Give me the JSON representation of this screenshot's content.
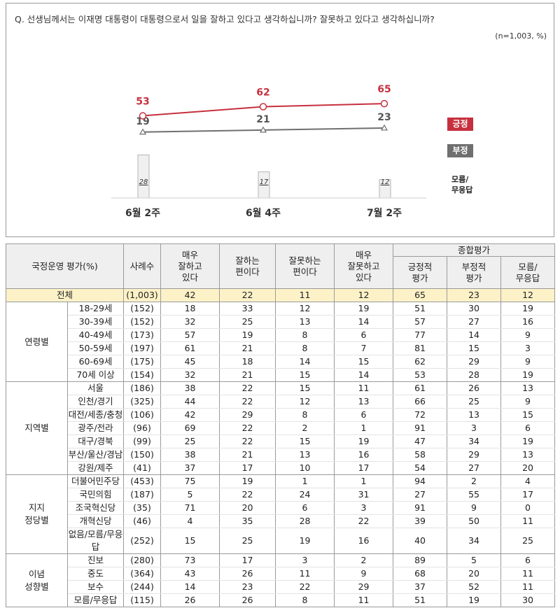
{
  "question": "Q. 선생님께서는 이재명 대통령이 대통령으로서 일을 잘하고 있다고 생각하십니까? 잘못하고 있다고 생각하십니까?",
  "sample_note": "(n=1,003,  %)",
  "legend": {
    "positive": "긍정",
    "negative": "부정",
    "dont_know": "모름/\n무응답"
  },
  "colors": {
    "positive": "#c6303e",
    "negative": "#6f6f6f",
    "bar_fill": "#f0f0f0",
    "total_row": "#fdf2c7"
  },
  "chart_data": {
    "type": "line",
    "categories": [
      "6월 2주",
      "6월 4주",
      "7월 2주"
    ],
    "series": [
      {
        "name": "긍정",
        "values": [
          53,
          62,
          65
        ]
      },
      {
        "name": "부정",
        "values": [
          19,
          21,
          23
        ]
      },
      {
        "name": "모름/무응답",
        "values": [
          28,
          17,
          12
        ]
      }
    ],
    "ylim": [
      0,
      100
    ]
  },
  "table": {
    "header": {
      "label": "국정운영 평가(%)",
      "sample": "사례수",
      "c1": "매우\n잘하고\n있다",
      "c2": "잘하는\n편이다",
      "c3": "잘못하는\n편이다",
      "c4": "매우\n잘못하고\n있다",
      "summary": "종합평가",
      "s1": "긍정적\n평가",
      "s2": "부정적\n평가",
      "s3": "모름/\n무응답"
    },
    "total": {
      "label": "전체",
      "n": "(1,003)",
      "v": [
        "42",
        "22",
        "11",
        "12",
        "65",
        "23",
        "12"
      ]
    },
    "groups": [
      {
        "name": "연령별",
        "rows": [
          {
            "label": "18-29세",
            "n": "(152)",
            "v": [
              "18",
              "33",
              "12",
              "19",
              "51",
              "30",
              "19"
            ]
          },
          {
            "label": "30-39세",
            "n": "(152)",
            "v": [
              "32",
              "25",
              "13",
              "14",
              "57",
              "27",
              "16"
            ]
          },
          {
            "label": "40-49세",
            "n": "(173)",
            "v": [
              "57",
              "19",
              "8",
              "6",
              "77",
              "14",
              "9"
            ]
          },
          {
            "label": "50-59세",
            "n": "(197)",
            "v": [
              "61",
              "21",
              "8",
              "7",
              "81",
              "15",
              "3"
            ]
          },
          {
            "label": "60-69세",
            "n": "(175)",
            "v": [
              "45",
              "18",
              "14",
              "15",
              "62",
              "29",
              "9"
            ]
          },
          {
            "label": "70세 이상",
            "n": "(154)",
            "v": [
              "32",
              "21",
              "15",
              "14",
              "53",
              "28",
              "19"
            ]
          }
        ]
      },
      {
        "name": "지역별",
        "rows": [
          {
            "label": "서울",
            "n": "(186)",
            "v": [
              "38",
              "22",
              "15",
              "11",
              "61",
              "26",
              "13"
            ]
          },
          {
            "label": "인천/경기",
            "n": "(325)",
            "v": [
              "44",
              "22",
              "12",
              "13",
              "66",
              "25",
              "9"
            ]
          },
          {
            "label": "대전/세종/충청",
            "n": "(106)",
            "v": [
              "42",
              "29",
              "8",
              "6",
              "72",
              "13",
              "15"
            ]
          },
          {
            "label": "광주/전라",
            "n": "(96)",
            "v": [
              "69",
              "22",
              "2",
              "1",
              "91",
              "3",
              "6"
            ]
          },
          {
            "label": "대구/경북",
            "n": "(99)",
            "v": [
              "25",
              "22",
              "15",
              "19",
              "47",
              "34",
              "19"
            ]
          },
          {
            "label": "부산/울산/경남",
            "n": "(150)",
            "v": [
              "38",
              "21",
              "13",
              "16",
              "58",
              "29",
              "13"
            ]
          },
          {
            "label": "강원/제주",
            "n": "(41)",
            "v": [
              "37",
              "17",
              "10",
              "17",
              "54",
              "27",
              "20"
            ]
          }
        ]
      },
      {
        "name": "지지\n정당별",
        "rows": [
          {
            "label": "더불어민주당",
            "n": "(453)",
            "v": [
              "75",
              "19",
              "1",
              "1",
              "94",
              "2",
              "4"
            ]
          },
          {
            "label": "국민의힘",
            "n": "(187)",
            "v": [
              "5",
              "22",
              "24",
              "31",
              "27",
              "55",
              "17"
            ]
          },
          {
            "label": "조국혁신당",
            "n": "(35)",
            "v": [
              "71",
              "20",
              "6",
              "3",
              "91",
              "9",
              "0"
            ]
          },
          {
            "label": "개혁신당",
            "n": "(46)",
            "v": [
              "4",
              "35",
              "28",
              "22",
              "39",
              "50",
              "11"
            ]
          },
          {
            "label": "없음/모름/무응답",
            "n": "(252)",
            "v": [
              "15",
              "25",
              "19",
              "16",
              "40",
              "34",
              "25"
            ]
          }
        ]
      },
      {
        "name": "이념\n성향별",
        "rows": [
          {
            "label": "진보",
            "n": "(280)",
            "v": [
              "73",
              "17",
              "3",
              "2",
              "89",
              "5",
              "6"
            ]
          },
          {
            "label": "중도",
            "n": "(364)",
            "v": [
              "43",
              "26",
              "11",
              "9",
              "68",
              "20",
              "11"
            ]
          },
          {
            "label": "보수",
            "n": "(244)",
            "v": [
              "14",
              "23",
              "22",
              "29",
              "37",
              "52",
              "11"
            ]
          },
          {
            "label": "모름/무응답",
            "n": "(115)",
            "v": [
              "26",
              "26",
              "8",
              "11",
              "51",
              "19",
              "30"
            ]
          }
        ]
      }
    ]
  }
}
